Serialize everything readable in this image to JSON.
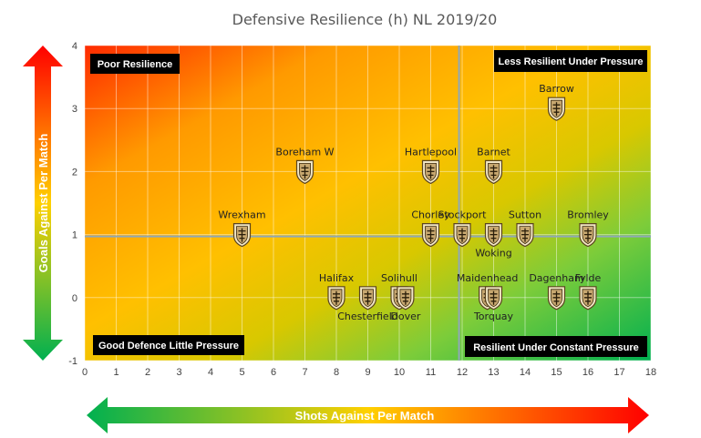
{
  "chart_data": {
    "type": "scatter",
    "title": "Defensive Resilience (h) NL 2019/20",
    "xlabel": "Shots Against Per Match",
    "ylabel": "Goals Against Per Match",
    "xlim": [
      0,
      18
    ],
    "ylim": [
      -1,
      4
    ],
    "x_ticks": [
      "0",
      "1",
      "2",
      "3",
      "4",
      "5",
      "6",
      "7",
      "8",
      "9",
      "10",
      "11",
      "12",
      "13",
      "14",
      "15",
      "16",
      "17",
      "18"
    ],
    "y_ticks": [
      "-1",
      "0",
      "1",
      "2",
      "3",
      "4"
    ],
    "grid": true,
    "reference_lines": {
      "x": 11.9,
      "y": 0.97
    },
    "quadrant_labels": {
      "top_left": "Poor Resilience",
      "top_right": "Less Resilient Under Pressure",
      "bottom_left": "Good Defence Little Pressure",
      "bottom_right": "Resilient Under Constant Pressure"
    },
    "points": [
      {
        "label": "Barrow",
        "x": 15.0,
        "y": 3.0,
        "label_pos": "above"
      },
      {
        "label": "Boreham W",
        "x": 7.0,
        "y": 2.0,
        "label_pos": "above"
      },
      {
        "label": "Hartlepool",
        "x": 11.0,
        "y": 2.0,
        "label_pos": "above"
      },
      {
        "label": "Barnet",
        "x": 13.0,
        "y": 2.0,
        "label_pos": "above"
      },
      {
        "label": "Wrexham",
        "x": 5.0,
        "y": 1.0,
        "label_pos": "above"
      },
      {
        "label": "Chorley",
        "x": 11.0,
        "y": 1.0,
        "label_pos": "above"
      },
      {
        "label": "Stockport",
        "x": 12.0,
        "y": 1.0,
        "label_pos": "above"
      },
      {
        "label": "Woking",
        "x": 13.0,
        "y": 1.0,
        "label_pos": "below"
      },
      {
        "label": "Sutton",
        "x": 14.0,
        "y": 1.0,
        "label_pos": "above"
      },
      {
        "label": "Bromley",
        "x": 16.0,
        "y": 1.0,
        "label_pos": "above"
      },
      {
        "label": "Halifax",
        "x": 8.0,
        "y": 0.0,
        "label_pos": "above"
      },
      {
        "label": "Chesterfield",
        "x": 9.0,
        "y": 0.0,
        "label_pos": "below"
      },
      {
        "label": "Solihull",
        "x": 10.0,
        "y": 0.0,
        "label_pos": "above"
      },
      {
        "label": "Dover",
        "x": 10.2,
        "y": 0.0,
        "label_pos": "below"
      },
      {
        "label": "Maidenhead",
        "x": 12.8,
        "y": 0.0,
        "label_pos": "above"
      },
      {
        "label": "Torquay",
        "x": 13.0,
        "y": 0.0,
        "label_pos": "below"
      },
      {
        "label": "Dagenham",
        "x": 15.0,
        "y": 0.0,
        "label_pos": "above"
      },
      {
        "label": "Fylde",
        "x": 16.0,
        "y": 0.0,
        "label_pos": "above"
      }
    ]
  },
  "colors": {
    "hot": "#ff2a00",
    "warm": "#ffc000",
    "neutral": "#c8c800",
    "cool": "#00b050",
    "arrow_green": "#00b050",
    "arrow_red": "#ff0000",
    "badge": "#c8a870",
    "ref_line": "#8fa8b8"
  },
  "marker_icon": "club-crest-icon"
}
